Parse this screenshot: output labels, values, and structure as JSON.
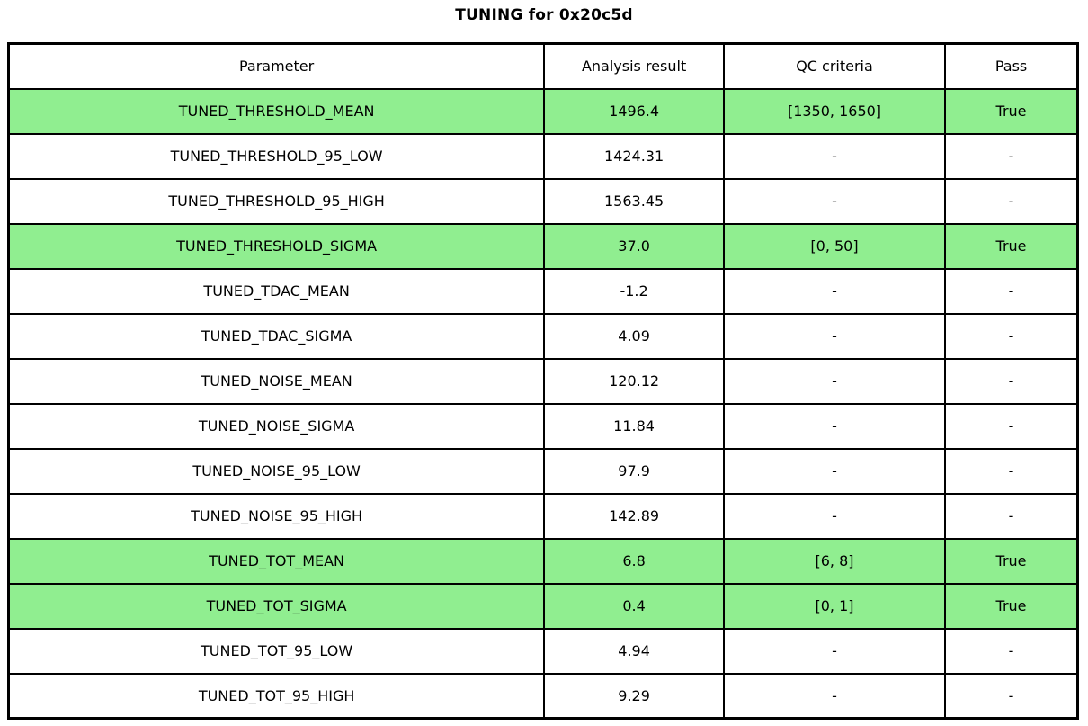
{
  "title": "TUNING for 0x20c5d",
  "highlight_color": "#90ee90",
  "chart_data": {
    "type": "table",
    "title": "TUNING for 0x20c5d",
    "columns": [
      "Parameter",
      "Analysis result",
      "QC criteria",
      "Pass"
    ],
    "rows": [
      {
        "parameter": "TUNED_THRESHOLD_MEAN",
        "result": "1496.4",
        "qc": "[1350, 1650]",
        "pass": "True",
        "highlight": true
      },
      {
        "parameter": "TUNED_THRESHOLD_95_LOW",
        "result": "1424.31",
        "qc": "-",
        "pass": "-",
        "highlight": false
      },
      {
        "parameter": "TUNED_THRESHOLD_95_HIGH",
        "result": "1563.45",
        "qc": "-",
        "pass": "-",
        "highlight": false
      },
      {
        "parameter": "TUNED_THRESHOLD_SIGMA",
        "result": "37.0",
        "qc": "[0, 50]",
        "pass": "True",
        "highlight": true
      },
      {
        "parameter": "TUNED_TDAC_MEAN",
        "result": "-1.2",
        "qc": "-",
        "pass": "-",
        "highlight": false
      },
      {
        "parameter": "TUNED_TDAC_SIGMA",
        "result": "4.09",
        "qc": "-",
        "pass": "-",
        "highlight": false
      },
      {
        "parameter": "TUNED_NOISE_MEAN",
        "result": "120.12",
        "qc": "-",
        "pass": "-",
        "highlight": false
      },
      {
        "parameter": "TUNED_NOISE_SIGMA",
        "result": "11.84",
        "qc": "-",
        "pass": "-",
        "highlight": false
      },
      {
        "parameter": "TUNED_NOISE_95_LOW",
        "result": "97.9",
        "qc": "-",
        "pass": "-",
        "highlight": false
      },
      {
        "parameter": "TUNED_NOISE_95_HIGH",
        "result": "142.89",
        "qc": "-",
        "pass": "-",
        "highlight": false
      },
      {
        "parameter": "TUNED_TOT_MEAN",
        "result": "6.8",
        "qc": "[6, 8]",
        "pass": "True",
        "highlight": true
      },
      {
        "parameter": "TUNED_TOT_SIGMA",
        "result": "0.4",
        "qc": "[0, 1]",
        "pass": "True",
        "highlight": true
      },
      {
        "parameter": "TUNED_TOT_95_LOW",
        "result": "4.94",
        "qc": "-",
        "pass": "-",
        "highlight": false
      },
      {
        "parameter": "TUNED_TOT_95_HIGH",
        "result": "9.29",
        "qc": "-",
        "pass": "-",
        "highlight": false
      }
    ]
  }
}
